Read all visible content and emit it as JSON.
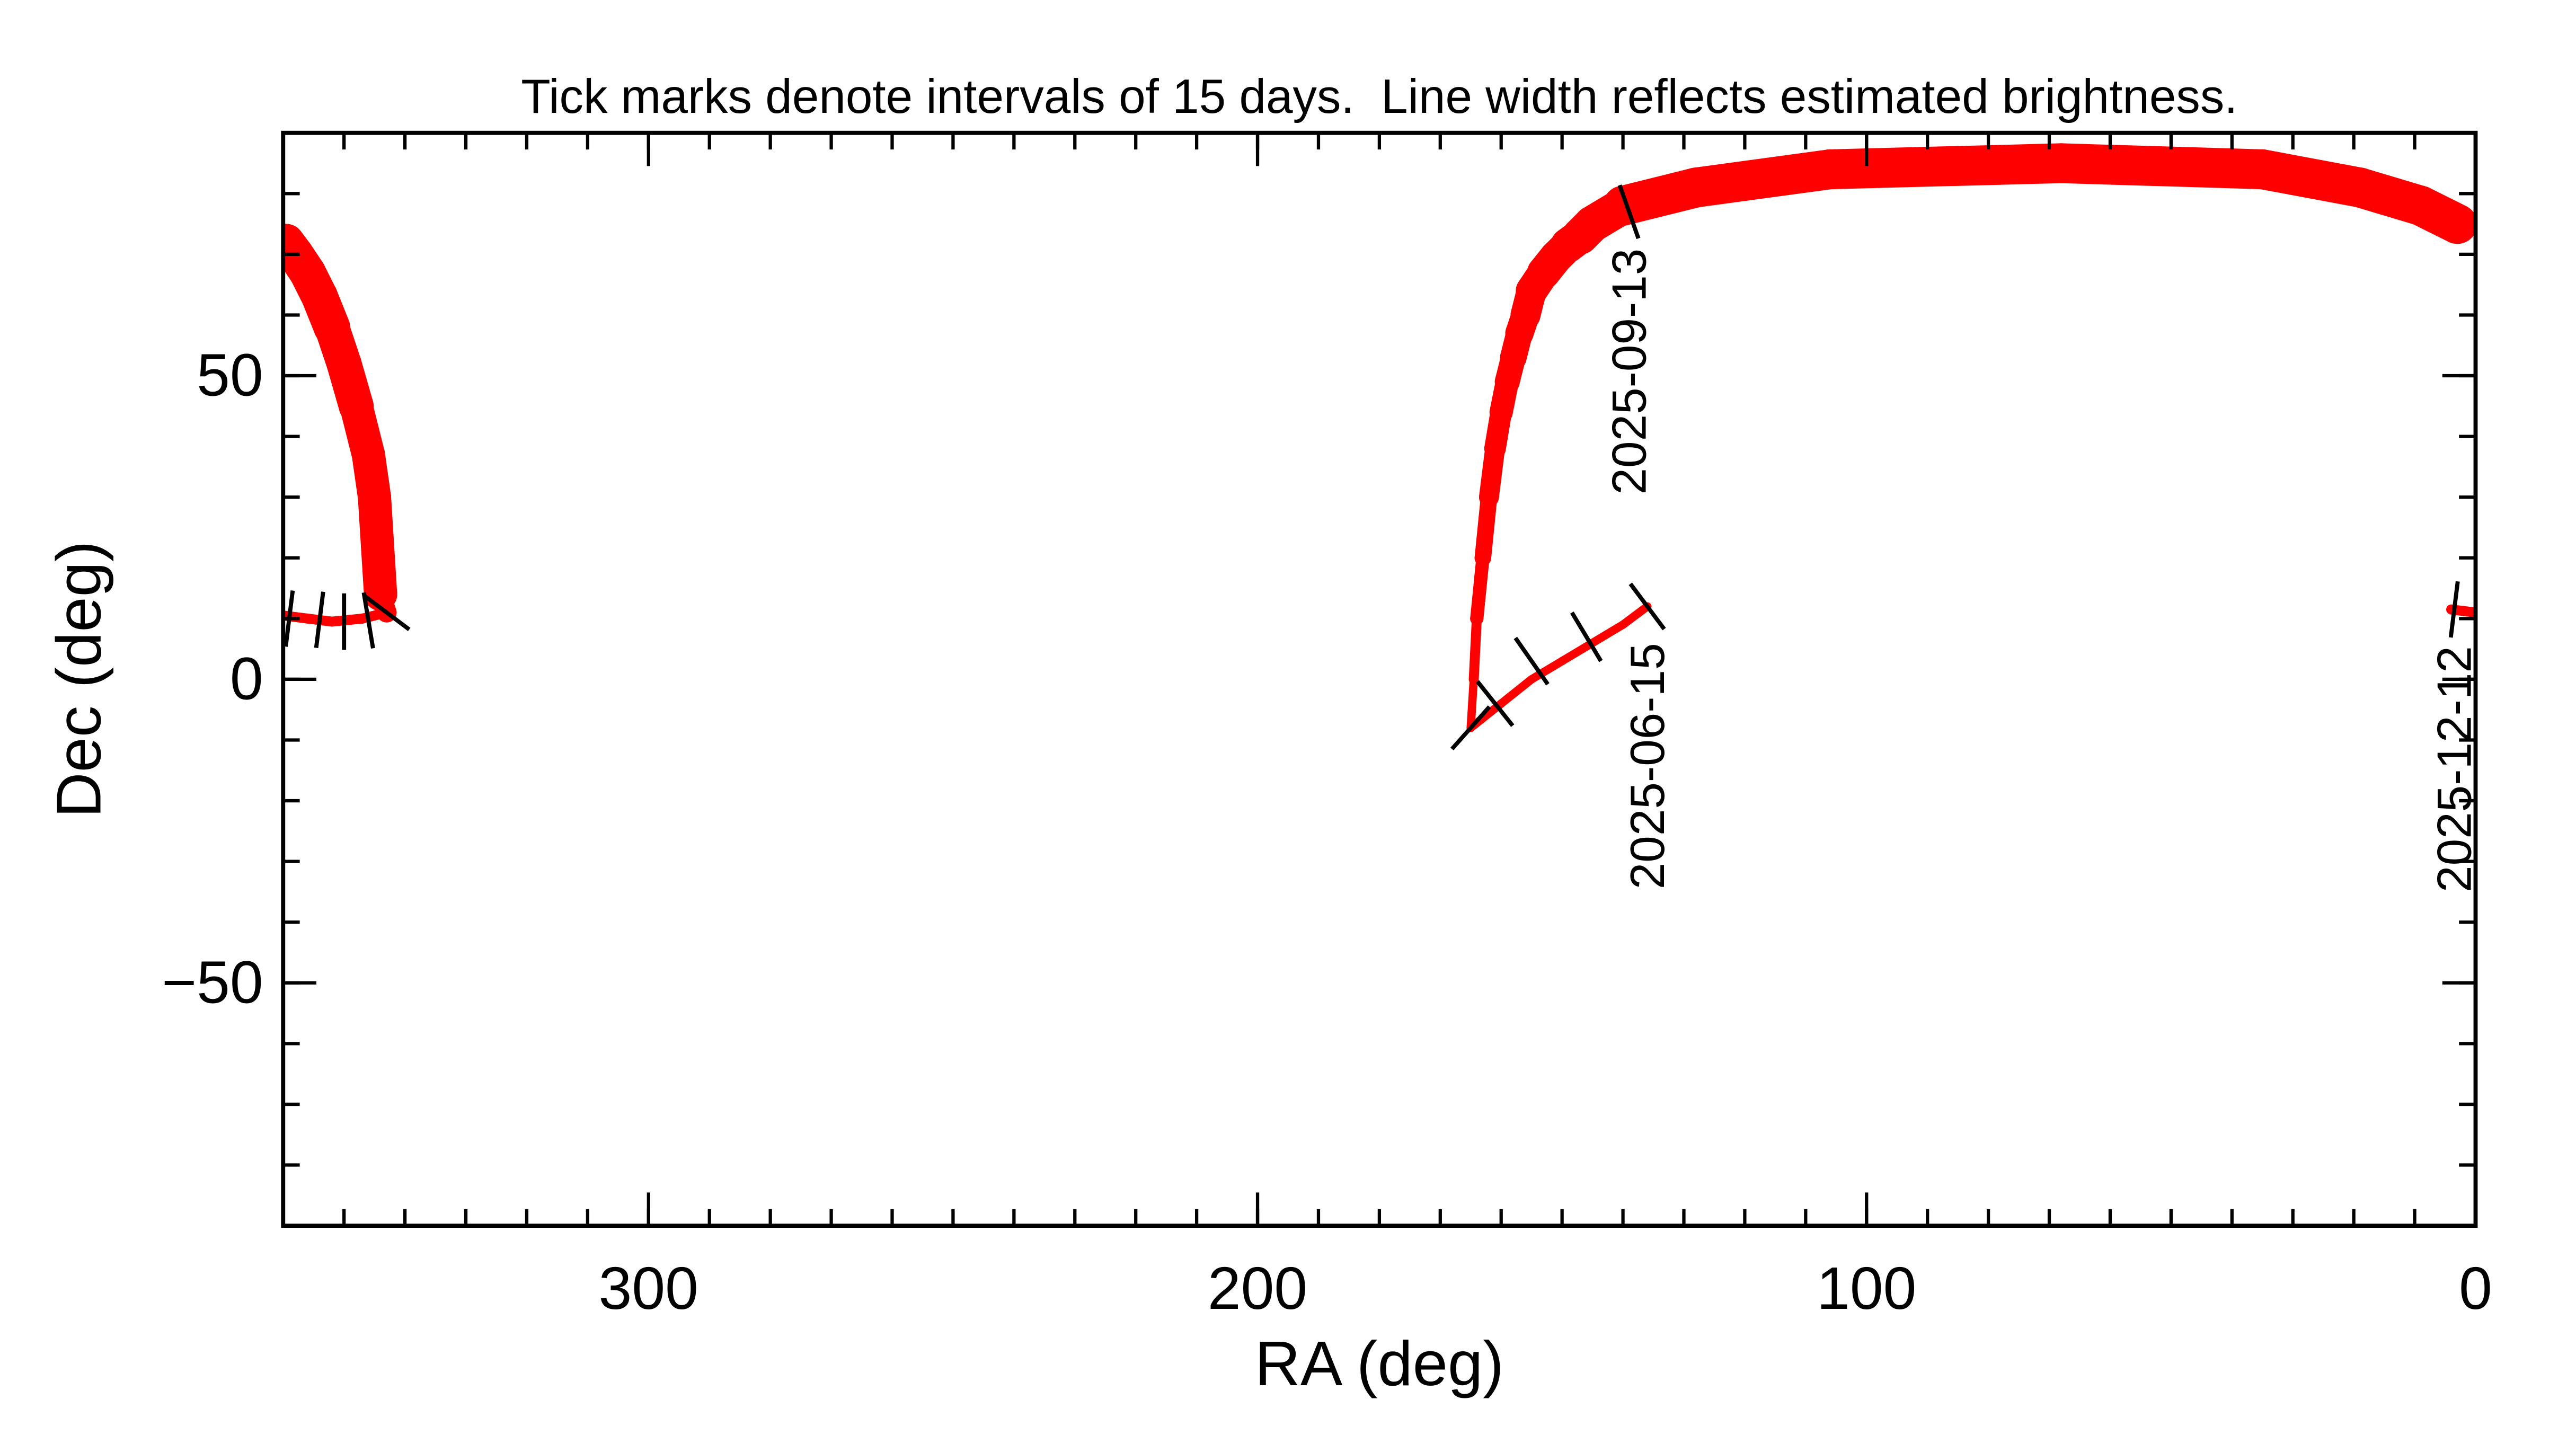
{
  "chart_data": {
    "type": "track",
    "title": "Tick marks denote intervals of 15 days.  Line width reflects estimated brightness.",
    "x_label": "RA (deg)",
    "y_label": "Dec (deg)",
    "xlim": [
      360,
      0
    ],
    "ylim": [
      -90,
      90
    ],
    "xticks": [
      300,
      200,
      100,
      0
    ],
    "yticks": [
      50,
      0,
      {
        "value": -50,
        "label": "−50"
      }
    ],
    "minor_tick_step": 10,
    "color": "#ff0000",
    "series": [
      {
        "x": [
          136,
          140,
          145,
          150,
          155,
          160,
          165,
          164.5,
          164,
          163,
          162,
          161,
          160,
          159,
          158,
          157,
          156,
          155,
          153,
          151,
          149,
          147,
          145,
          140,
          128,
          106,
          68,
          35,
          19,
          9,
          3,
          null,
          359.5,
          358,
          356,
          354,
          352,
          350,
          348,
          346,
          345,
          344.5,
          344,
          343,
          347,
          352,
          356,
          360,
          null,
          0,
          4
        ],
        "y": [
          12,
          9,
          6,
          3,
          0,
          -4,
          -8,
          0,
          10,
          20,
          30,
          38,
          44,
          49,
          53,
          57,
          60,
          64,
          67,
          69.5,
          71.5,
          73,
          75,
          78,
          81,
          84,
          85,
          84,
          81,
          78,
          75,
          null,
          72,
          70,
          67,
          63,
          58,
          52,
          45,
          37,
          30,
          22,
          14,
          11,
          10,
          9.5,
          10,
          10.5,
          null,
          11,
          11.5
        ],
        "sizes": [
          2.5,
          2.5,
          2.5,
          2.5,
          2.5,
          2.5,
          2.5,
          3,
          4,
          5,
          6,
          6.5,
          7,
          7.5,
          8,
          8.5,
          9,
          9.5,
          10,
          10,
          10.5,
          11,
          11,
          12,
          12,
          12,
          12,
          12,
          12,
          12,
          12,
          null,
          11,
          11,
          11,
          11,
          11,
          10.5,
          10.5,
          10,
          10,
          10,
          10,
          6,
          3,
          3,
          3,
          3,
          null,
          3,
          3
        ]
      }
    ],
    "date_ticks": {
      "x": [
        136,
        146,
        155,
        161,
        165,
        139,
        359,
        354,
        350,
        346,
        343,
        3.5
      ],
      "y": [
        12,
        7,
        3,
        -4,
        -8,
        77,
        10,
        9.8,
        9.5,
        9.7,
        11,
        11.5
      ]
    },
    "date_labels": [
      {
        "x": 136,
        "y": 12,
        "label": "2025-06-15"
      },
      {
        "x": 139,
        "y": 77,
        "label": "2025-09-13"
      },
      {
        "x": 3.5,
        "y": 11.5,
        "label": "2025-12-12"
      }
    ]
  }
}
